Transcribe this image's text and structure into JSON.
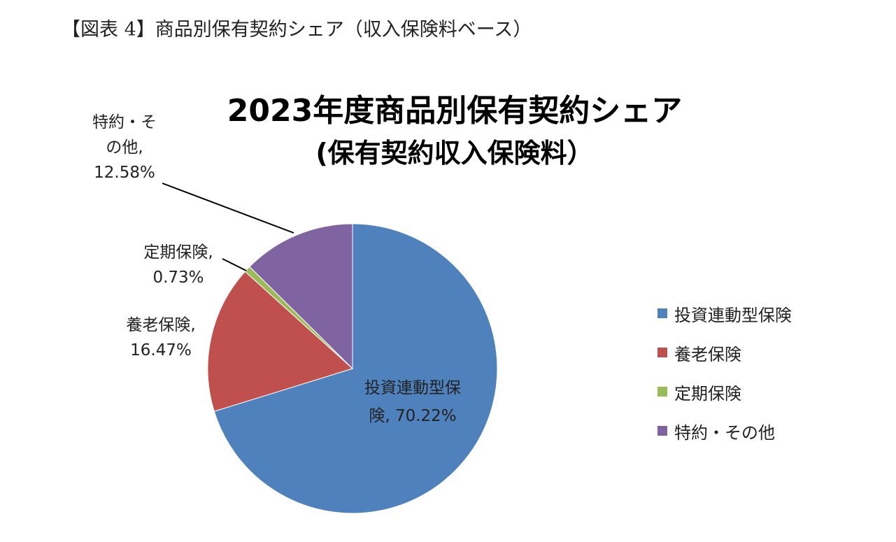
{
  "figure_caption": "【図表 4】商品別保有契約シェア（収入保険料ベース）",
  "chart_data": {
    "type": "pie",
    "title": "2023年度商品別保有契約シェア",
    "subtitle": "(保有契約収入保険料）",
    "unit": "%",
    "slices": [
      {
        "name": "投資連動型保険",
        "value": 70.22,
        "color": "#4F81BD",
        "label_lines": [
          "投資連動型保",
          "険, 70.22%"
        ]
      },
      {
        "name": "養老保険",
        "value": 16.47,
        "color": "#C0504D",
        "label_lines": [
          "養老保険,",
          "16.47%"
        ]
      },
      {
        "name": "定期保険",
        "value": 0.73,
        "color": "#9BBB59",
        "label_lines": [
          "定期保険,",
          "0.73%"
        ]
      },
      {
        "name": "特約・その他",
        "value": 12.58,
        "color": "#8064A2",
        "label_lines": [
          "特約・そ",
          "の他,",
          "12.58%"
        ]
      }
    ],
    "legend": {
      "position": "right",
      "entries": [
        "投資連動型保険",
        "養老保険",
        "定期保険",
        "特約・その他"
      ]
    }
  }
}
